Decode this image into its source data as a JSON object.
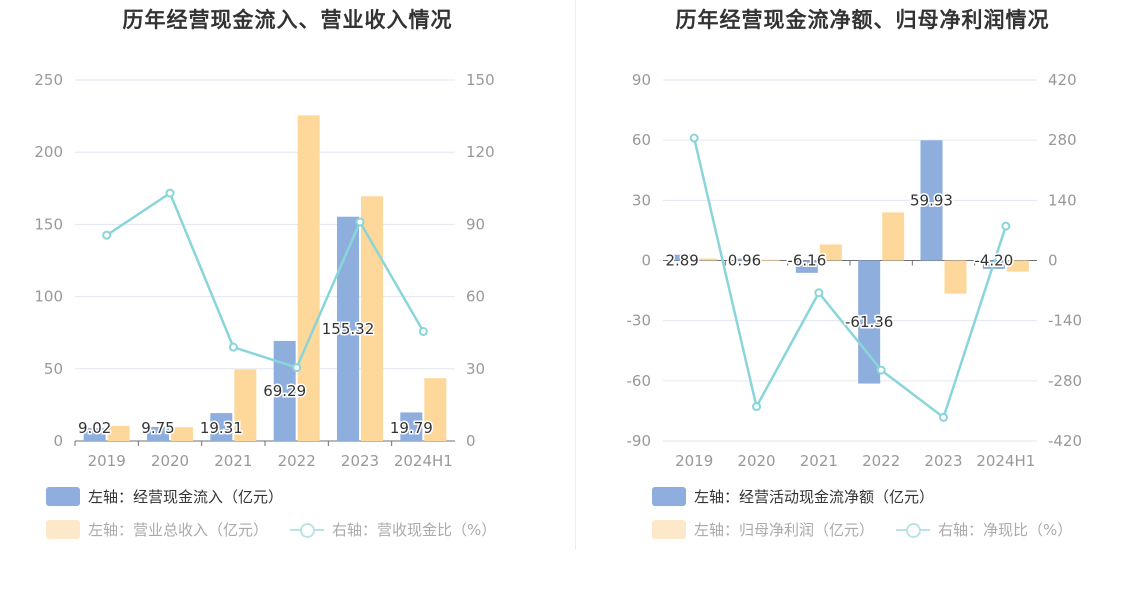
{
  "colors": {
    "blue": "#8eaedd",
    "orange": "#fed79b",
    "line": "#8ad5d9",
    "grid": "#e3e6f0",
    "axis_text": "#999999"
  },
  "chart_data": [
    {
      "type": "bar",
      "title": "历年经营现金流入、营业收入情况",
      "categories": [
        "2019",
        "2020",
        "2021",
        "2022",
        "2023",
        "2024H1"
      ],
      "left_axis": {
        "ticks": [
          "0",
          "50",
          "100",
          "150",
          "200",
          "250"
        ],
        "ylim": [
          0,
          250
        ]
      },
      "right_axis": {
        "ticks": [
          "0",
          "30",
          "60",
          "90",
          "120",
          "150"
        ],
        "ylim": [
          0,
          150
        ]
      },
      "series": [
        {
          "name": "左轴：经营现金流入（亿元）",
          "type": "bar",
          "axis": "left",
          "color": "#8eaedd",
          "values": [
            9.02,
            9.75,
            19.31,
            69.29,
            155.32,
            19.79
          ],
          "labels": [
            "9.02",
            "9.75",
            "19.31",
            "69.29",
            "155.32",
            "19.79"
          ]
        },
        {
          "name": "左轴：营业总收入（亿元）",
          "type": "bar",
          "axis": "left",
          "color": "#fed79b",
          "values": [
            10.5,
            9.5,
            49.5,
            225.5,
            169.5,
            43.5
          ]
        },
        {
          "name": "右轴：营收现金比（%）",
          "type": "line",
          "axis": "right",
          "color": "#8ad5d9",
          "values": [
            85.5,
            103,
            39,
            30.5,
            91,
            45.5
          ]
        }
      ],
      "legend": [
        {
          "label": "左轴：经营现金流入（亿元）",
          "kind": "bar",
          "color": "#8eaedd"
        },
        {
          "label": "左轴：营业总收入（亿元）",
          "kind": "bar",
          "color": "#fed79b"
        },
        {
          "label": "右轴：营收现金比（%）",
          "kind": "line",
          "color": "#8ad5d9"
        }
      ]
    },
    {
      "type": "bar",
      "title": "历年经营现金流净额、归母净利润情况",
      "categories": [
        "2019",
        "2020",
        "2021",
        "2022",
        "2023",
        "2024H1"
      ],
      "left_axis": {
        "ticks": [
          "-90",
          "-60",
          "-30",
          "0",
          "30",
          "60",
          "90"
        ],
        "ylim": [
          -90,
          90
        ]
      },
      "right_axis": {
        "ticks": [
          "-420",
          "-280",
          "-140",
          "0",
          "140",
          "280",
          "420"
        ],
        "ylim": [
          -420,
          420
        ]
      },
      "series": [
        {
          "name": "左轴：经营活动现金流净额（亿元）",
          "type": "bar",
          "axis": "left",
          "color": "#8eaedd",
          "values": [
            2.89,
            0.96,
            -6.16,
            -61.36,
            59.93,
            -4.2
          ],
          "labels": [
            "2.89",
            "0.96",
            "-6.16",
            "-61.36",
            "59.93",
            "-4.20"
          ]
        },
        {
          "name": "左轴：归母净利润（亿元）",
          "type": "bar",
          "axis": "left",
          "color": "#fed79b",
          "values": [
            1.0,
            0.4,
            8.0,
            24.0,
            -16.5,
            -5.5
          ]
        },
        {
          "name": "右轴：净现比（%）",
          "type": "line",
          "axis": "right",
          "color": "#8ad5d9",
          "values": [
            285,
            -340,
            -75,
            -255,
            -365,
            80
          ]
        }
      ],
      "legend": [
        {
          "label": "左轴：经营活动现金流净额（亿元）",
          "kind": "bar",
          "color": "#8eaedd"
        },
        {
          "label": "左轴：归母净利润（亿元）",
          "kind": "bar",
          "color": "#fed79b"
        },
        {
          "label": "右轴：净现比（%）",
          "kind": "line",
          "color": "#8ad5d9"
        }
      ]
    }
  ]
}
